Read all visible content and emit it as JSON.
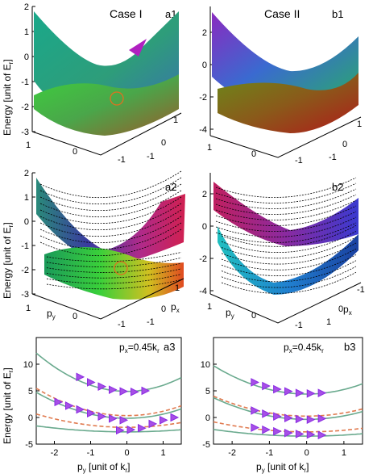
{
  "figure": {
    "case_titles": [
      "Case I",
      "Case II"
    ],
    "energy_ylabel": "Energy [unit of E_r]",
    "energy_ylabel_a3": "Energy [unit of E_r]",
    "surface_labels": {
      "px": "p_x",
      "py": "p_y"
    }
  },
  "chart_data": [
    {
      "type": "surface",
      "panel": "a1",
      "title": "Case I",
      "zlabel": "Energy [unit of E_r]",
      "z_ticks": [
        "2",
        "1",
        "0",
        "-1",
        "-2",
        "-3"
      ],
      "y_ticks": [
        "1",
        "0",
        "-1"
      ],
      "x_ticks": [
        "1",
        "0",
        "-1"
      ],
      "bands": 2
    },
    {
      "type": "surface",
      "panel": "b1",
      "title": "Case II",
      "z_ticks": [
        "2",
        "0",
        "-2",
        "-4"
      ],
      "y_ticks": [
        "1",
        "0",
        "-1"
      ],
      "x_ticks": [
        "1",
        "0",
        "-1"
      ],
      "bands": 2
    },
    {
      "type": "surface",
      "panel": "a2",
      "zlabel": "Energy [unit of E_r]",
      "z_ticks": [
        "2",
        "1",
        "0",
        "-1",
        "-2",
        "-3"
      ],
      "y_ticks": [
        "1",
        "0",
        "-1"
      ],
      "x_ticks": [
        "1",
        "0",
        "-1"
      ],
      "xlabel": "p_x",
      "ylabel": "p_y"
    },
    {
      "type": "surface",
      "panel": "b2",
      "z_ticks": [
        "2",
        "0",
        "-2",
        "-4"
      ],
      "y_ticks": [
        "1",
        "0",
        "-1"
      ],
      "x_ticks": [
        "1",
        "0",
        "-1"
      ],
      "xlabel": "p_x",
      "ylabel": "p_y"
    },
    {
      "type": "scatter",
      "panel": "a3",
      "annotation": "p_x=0.45k_r",
      "xlabel": "p_y [unit of k_r]",
      "ylabel": "Energy [unit of E_r]",
      "xlim": [
        -2.5,
        1.5
      ],
      "ylim": [
        -5,
        15
      ],
      "xticks": [
        -2,
        -1,
        0,
        1
      ],
      "yticks": [
        -5,
        0,
        5,
        10
      ],
      "curves": [
        {
          "style": "solid",
          "color": "#6aaa8e",
          "y0": 4.9,
          "a": 1.15
        },
        {
          "style": "solid",
          "color": "#6aaa8e",
          "y0": -0.15,
          "a": 0.78
        },
        {
          "style": "solid",
          "color": "#6aaa8e",
          "y0": -2.7,
          "a": 0.18
        },
        {
          "style": "dashed",
          "color": "#e07a4f",
          "y0": 0.35,
          "a": 0.82
        },
        {
          "style": "dashed",
          "color": "#e07a4f",
          "y0": -1.85,
          "a": 0.4
        }
      ],
      "points": [
        {
          "x": [
            -1.3,
            -1.0,
            -0.7,
            -0.4,
            -0.1,
            0.2,
            0.5
          ],
          "y": [
            7.6,
            6.6,
            5.8,
            5.2,
            4.9,
            4.8,
            5.0
          ]
        },
        {
          "x": [
            -1.9,
            -1.6,
            -1.3,
            -1.0,
            -0.7,
            -0.4,
            -0.1
          ],
          "y": [
            2.9,
            2.2,
            1.5,
            0.8,
            0.2,
            -0.2,
            -0.5
          ]
        },
        {
          "x": [
            -0.2,
            0.1,
            0.4,
            0.7,
            1.0,
            1.3
          ],
          "y": [
            -2.4,
            -2.3,
            -2.0,
            -1.2,
            -0.5,
            0.0
          ]
        }
      ]
    },
    {
      "type": "scatter",
      "panel": "b3",
      "annotation": "p_x=0.45k_r",
      "xlabel": "p_y [unit of k_r]",
      "xlim": [
        -2.5,
        1.5
      ],
      "ylim": [
        -5,
        15
      ],
      "xticks": [
        -2,
        -1,
        0,
        1
      ],
      "yticks": [
        -5,
        0,
        5,
        10
      ],
      "curves": [
        {
          "style": "solid",
          "color": "#6aaa8e",
          "y0": 4.4,
          "a": 0.85
        },
        {
          "style": "solid",
          "color": "#6aaa8e",
          "y0": -0.35,
          "a": 0.65
        },
        {
          "style": "solid",
          "color": "#6aaa8e",
          "y0": -3.5,
          "a": 0.2
        },
        {
          "style": "dashed",
          "color": "#e07a4f",
          "y0": 0.25,
          "a": 0.6
        },
        {
          "style": "dashed",
          "color": "#e07a4f",
          "y0": -2.7,
          "a": 0.3
        }
      ],
      "points": [
        {
          "x": [
            -1.4,
            -1.1,
            -0.8,
            -0.5,
            -0.2,
            0.1,
            0.4
          ],
          "y": [
            6.6,
            5.9,
            5.3,
            4.9,
            4.6,
            4.5,
            4.6
          ]
        },
        {
          "x": [
            -1.4,
            -1.1,
            -0.8,
            -0.5,
            -0.2,
            0.1,
            0.4
          ],
          "y": [
            1.3,
            0.7,
            0.2,
            -0.1,
            -0.3,
            -0.4,
            -0.2
          ]
        },
        {
          "x": [
            -1.4,
            -1.1,
            -0.8,
            -0.5,
            -0.2,
            0.1,
            0.4
          ],
          "y": [
            -1.9,
            -2.3,
            -2.6,
            -2.9,
            -3.1,
            -3.2,
            -3.3
          ]
        }
      ]
    }
  ],
  "panel_labels": {
    "a1": "a1",
    "b1": "b1",
    "a2": "a2",
    "b2": "b2",
    "a3": "a3",
    "b3": "b3"
  },
  "colors": {
    "fit_solid": "#6aaa8e",
    "fit_dashed": "#e07a4f",
    "marker": "#a64fe6",
    "marker_edge": "#8a2be2"
  }
}
